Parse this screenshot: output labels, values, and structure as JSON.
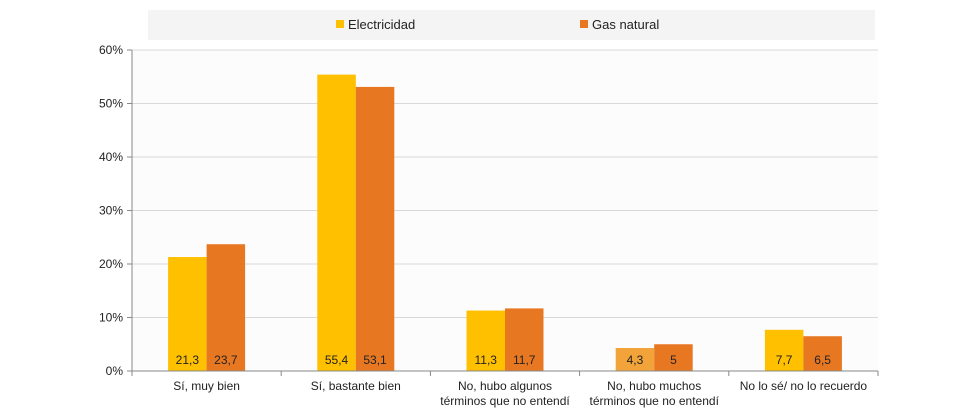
{
  "chart_data": {
    "type": "bar",
    "title": "",
    "xlabel": "",
    "ylabel": "",
    "ylim": [
      0,
      60
    ],
    "y_ticks": [
      "0%",
      "10%",
      "20%",
      "30%",
      "40%",
      "50%",
      "60%"
    ],
    "y_tick_values": [
      0,
      10,
      20,
      30,
      40,
      50,
      60
    ],
    "grid": true,
    "legend_position": "top",
    "categories": [
      [
        "Sí, muy bien"
      ],
      [
        "Sí, bastante bien"
      ],
      [
        "No, hubo algunos",
        "términos que no entendí"
      ],
      [
        "No, hubo muchos",
        "términos que no entendí"
      ],
      [
        "No lo sé/ no lo recuerdo"
      ]
    ],
    "series": [
      {
        "name": "Electricidad",
        "color": "#FFC000",
        "values": [
          21.3,
          55.4,
          11.3,
          4.3,
          7.7
        ],
        "labels": [
          "21,3",
          "55,4",
          "11,3",
          "4,3",
          "7,7"
        ],
        "point_colors": [
          null,
          null,
          null,
          "#F2A43A",
          null
        ]
      },
      {
        "name": "Gas natural",
        "color": "#E87722",
        "values": [
          23.7,
          53.1,
          11.7,
          5,
          6.5
        ],
        "labels": [
          "23,7",
          "53,1",
          "11,7",
          "5",
          "6,5"
        ],
        "point_colors": [
          null,
          null,
          null,
          null,
          null
        ]
      }
    ]
  }
}
